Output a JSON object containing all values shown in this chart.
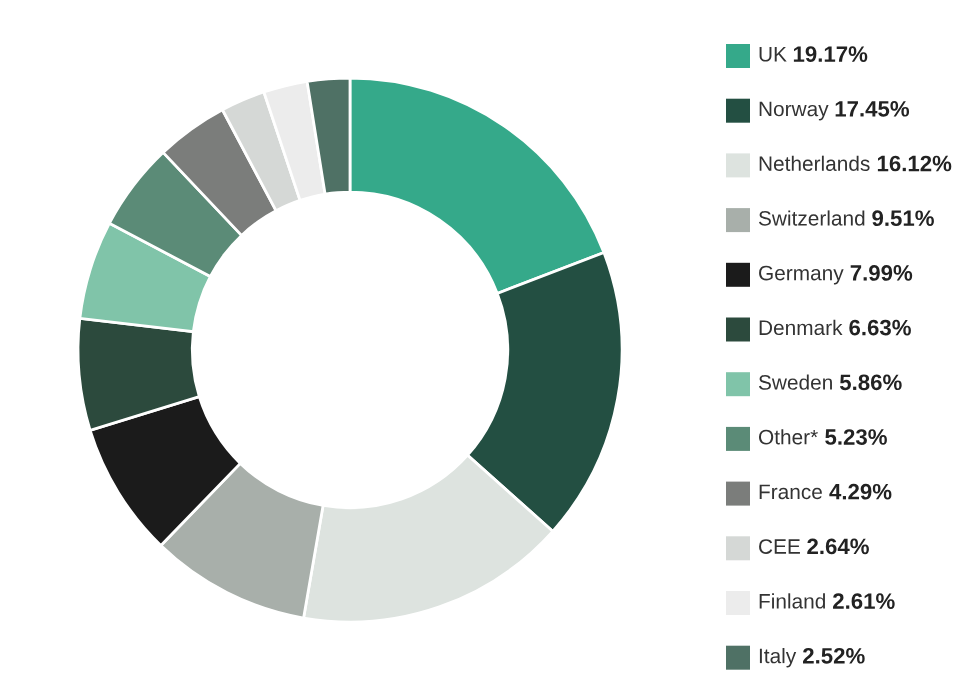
{
  "chart_data": {
    "type": "donut",
    "categories": [
      "UK",
      "Norway",
      "Netherlands",
      "Switzerland",
      "Germany",
      "Denmark",
      "Sweden",
      "Other*",
      "France",
      "CEE",
      "Finland",
      "Italy"
    ],
    "values": [
      19.17,
      17.45,
      16.12,
      9.51,
      7.99,
      6.63,
      5.86,
      5.23,
      4.29,
      2.64,
      2.61,
      2.52
    ],
    "colors": [
      "#35a98a",
      "#234f42",
      "#dde3df",
      "#a8afaa",
      "#1b1b1b",
      "#2c4a3d",
      "#80c4a9",
      "#5b8b77",
      "#7b7d7b",
      "#d5d8d6",
      "#ececec",
      "#4f7165"
    ],
    "value_labels": [
      "19.17%",
      "17.45%",
      "16.12%",
      "9.51%",
      "7.99%",
      "6.63%",
      "5.86%",
      "5.23%",
      "4.29%",
      "2.64%",
      "2.61%",
      "2.52%"
    ],
    "legend": "right"
  }
}
